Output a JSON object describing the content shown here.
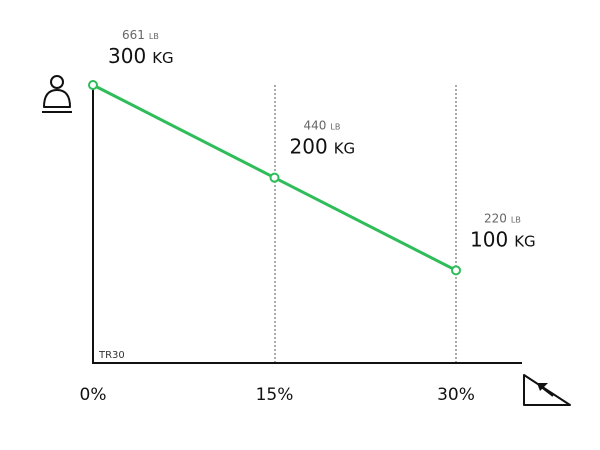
{
  "chart_data": {
    "type": "line",
    "model": "TR30",
    "x": [
      0,
      15,
      30
    ],
    "x_tick_labels": [
      "0%",
      "15%",
      "30%"
    ],
    "values": [
      300,
      200,
      100
    ],
    "data_labels": [
      {
        "secondary_value": "661",
        "secondary_unit": "LB",
        "value": "300",
        "unit": "KG"
      },
      {
        "secondary_value": "440",
        "secondary_unit": "LB",
        "value": "200",
        "unit": "KG"
      },
      {
        "secondary_value": "220",
        "secondary_unit": "LB",
        "value": "100",
        "unit": "KG"
      }
    ],
    "ylim": [
      0,
      300
    ],
    "xlim": [
      0,
      30
    ],
    "line_color": "#2ebd59",
    "axis_color": "#111111",
    "vertical_gridlines": "dotted at each x tick",
    "y_axis_icon": "weight-icon",
    "x_axis_icon": "incline-icon"
  }
}
